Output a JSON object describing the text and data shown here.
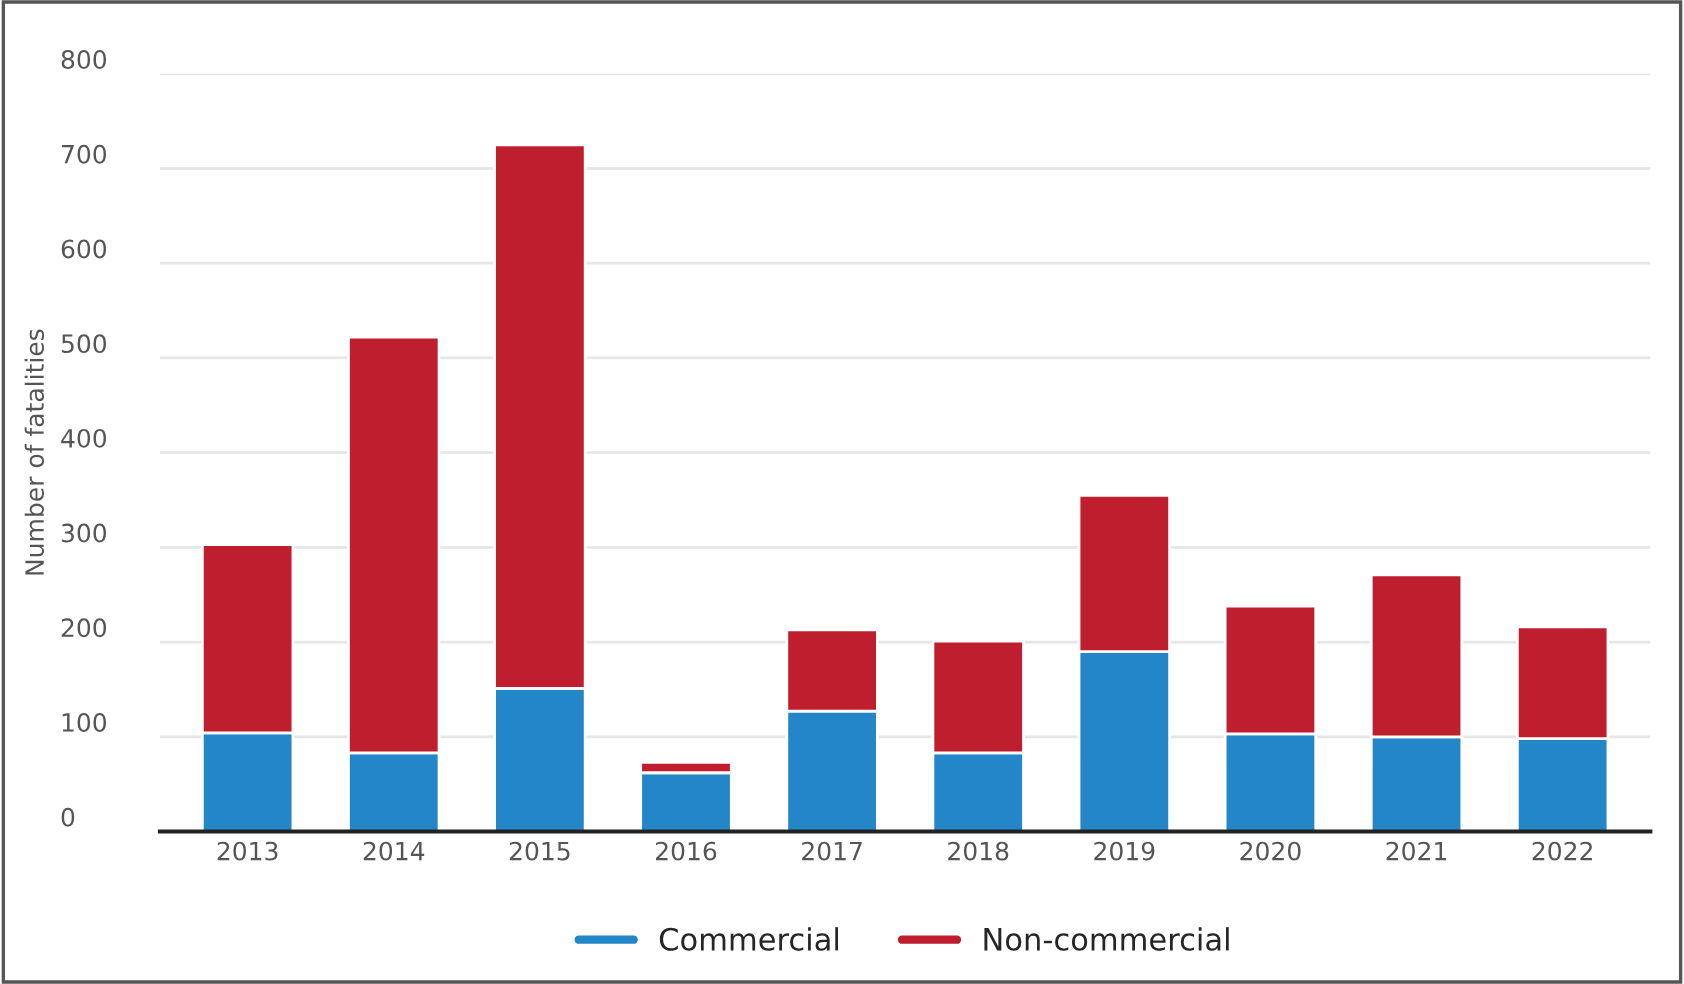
{
  "chart_data": {
    "type": "bar",
    "stacked": true,
    "ylabel": "Number of fatalities",
    "categories": [
      "2013",
      "2014",
      "2015",
      "2016",
      "2017",
      "2018",
      "2019",
      "2020",
      "2021",
      "2022"
    ],
    "series": [
      {
        "name": "Commercial",
        "color": "#2386c8",
        "values": [
          104,
          83,
          151,
          62,
          127,
          83,
          190,
          103,
          100,
          98
        ]
      },
      {
        "name": "Non-commercial",
        "color": "#be1e2d",
        "values": [
          199,
          439,
          574,
          11,
          86,
          118,
          165,
          135,
          171,
          118
        ]
      }
    ],
    "ylim": [
      0,
      800
    ],
    "yticks": [
      0,
      100,
      200,
      300,
      400,
      500,
      600,
      700,
      800
    ],
    "grid": "y",
    "legend": "bottom"
  }
}
